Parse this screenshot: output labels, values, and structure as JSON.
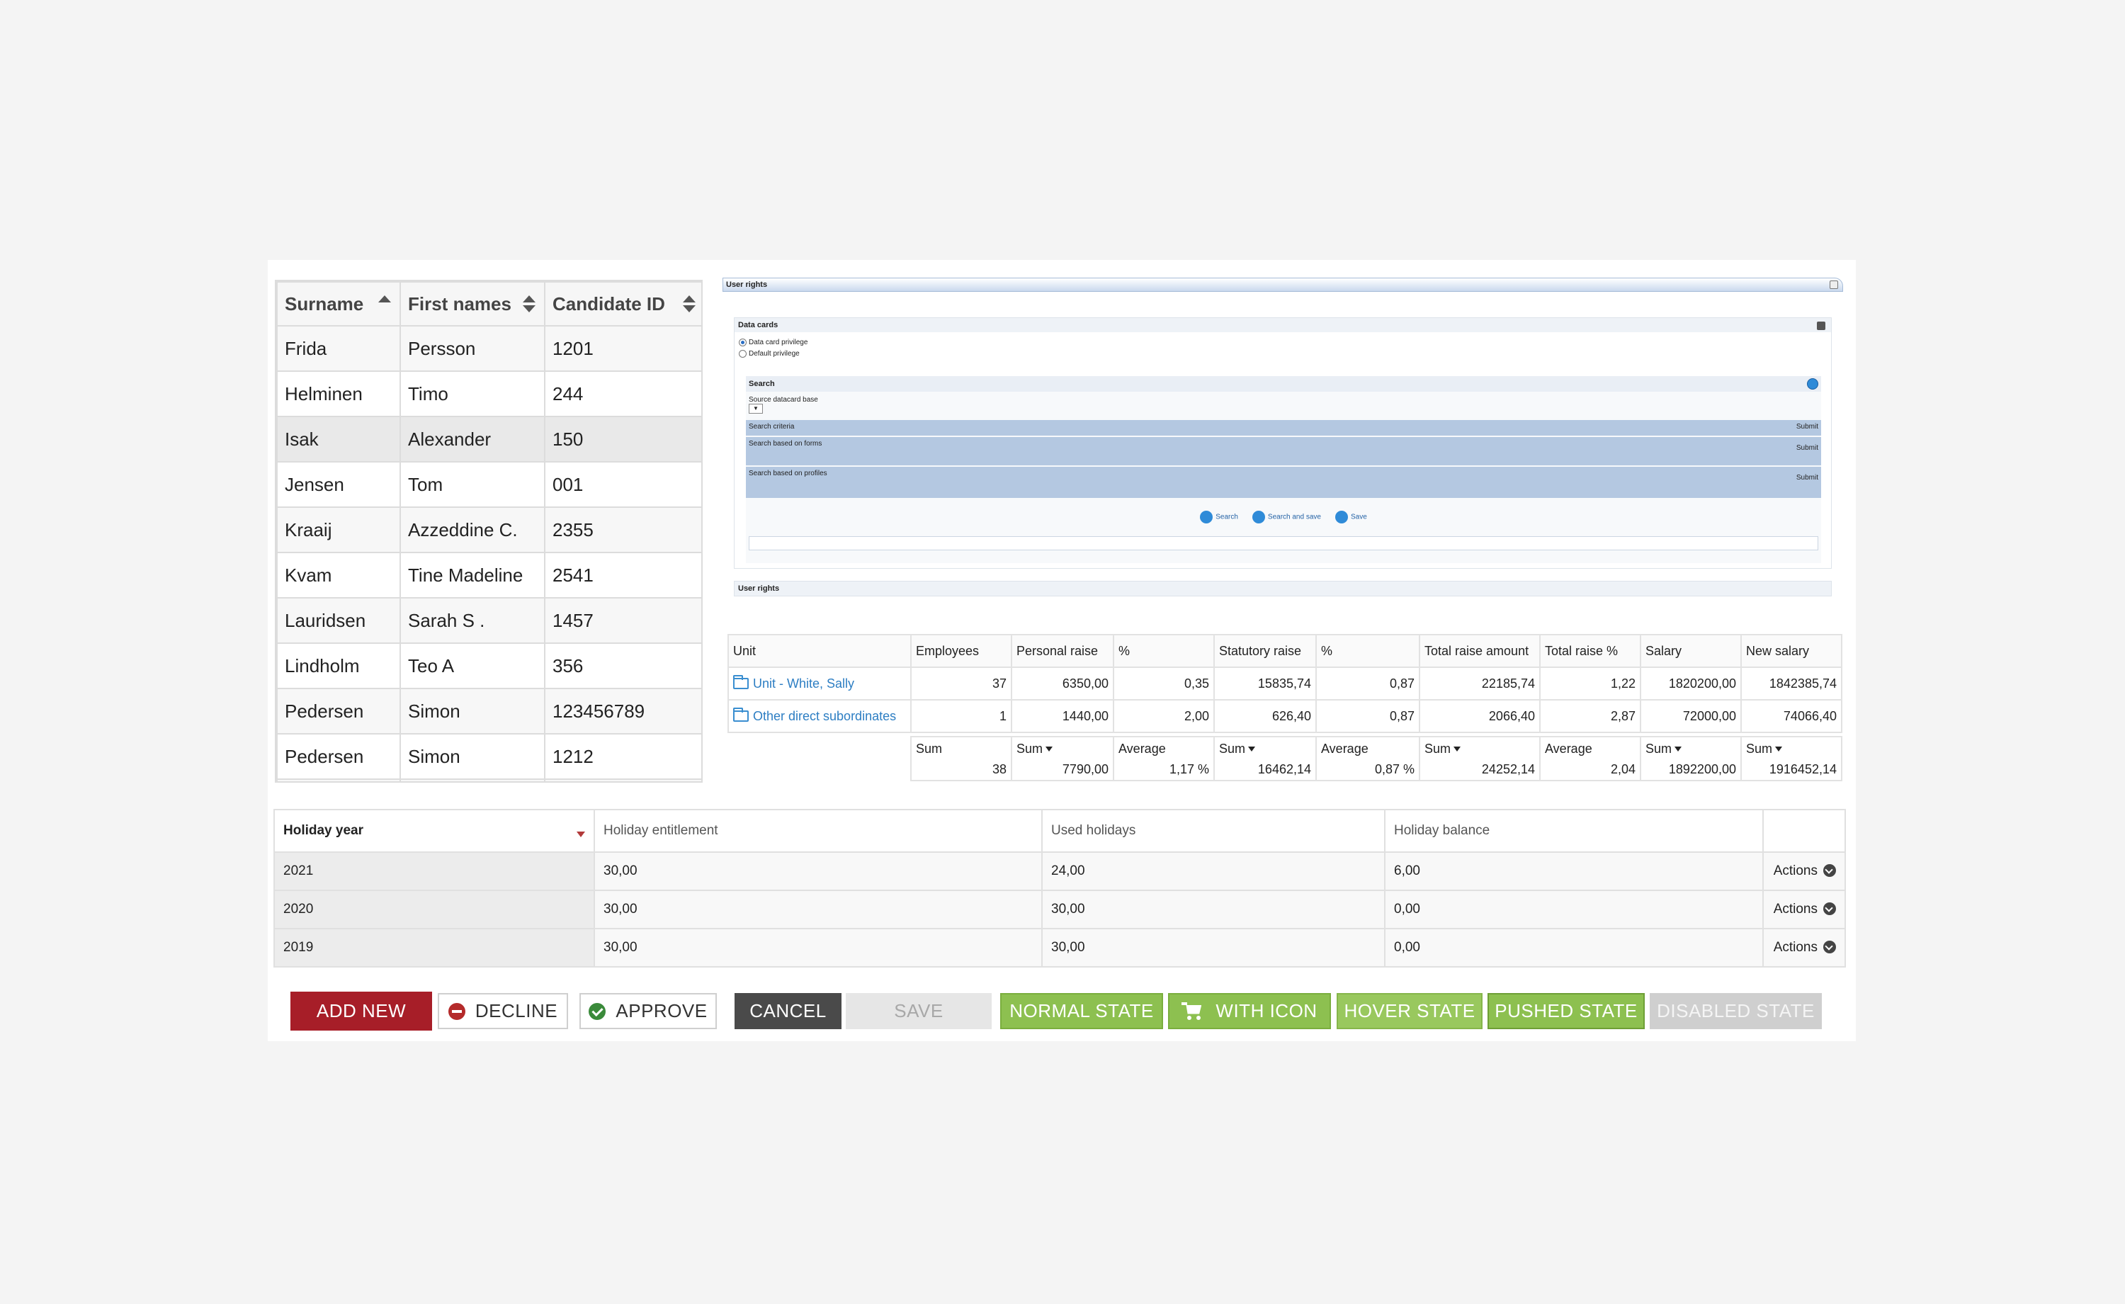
{
  "candidates": {
    "headers": {
      "surname": "Surname",
      "first_names": "First names",
      "candidate_id": "Candidate ID"
    },
    "rows": [
      {
        "surname": "Frida",
        "first": "Persson",
        "id": "1201"
      },
      {
        "surname": "Helminen",
        "first": "Timo",
        "id": "244"
      },
      {
        "surname": "Isak",
        "first": "Alexander",
        "id": "150"
      },
      {
        "surname": "Jensen",
        "first": "Tom",
        "id": "001"
      },
      {
        "surname": "Kraaij",
        "first": "Azzeddine C.",
        "id": "2355"
      },
      {
        "surname": "Kvam",
        "first": "Tine Madeline",
        "id": "2541"
      },
      {
        "surname": "Lauridsen",
        "first": "Sarah S .",
        "id": "1457"
      },
      {
        "surname": "Lindholm",
        "first": "Teo A",
        "id": "356"
      },
      {
        "surname": "Pedersen",
        "first": "Simon",
        "id": "123456789"
      },
      {
        "surname": "Pedersen",
        "first": "Simon",
        "id": "1212"
      }
    ]
  },
  "user_rights": {
    "title": "User rights",
    "data_cards": {
      "title": "Data cards",
      "radio_1": "Data card privilege",
      "radio_2": "Default privilege"
    },
    "search": {
      "title": "Search",
      "source_label": "Source datacard base",
      "criteria": "Search criteria",
      "forms": "Search based on forms",
      "profiles": "Search based on profiles",
      "submit": "Submit",
      "btn_search": "Search",
      "btn_search_save": "Search and save",
      "btn_save": "Save"
    },
    "footer": "User rights"
  },
  "raise": {
    "headers": [
      "Unit",
      "Employees",
      "Personal raise",
      "%",
      "Statutory raise",
      "%",
      "Total raise amount",
      "Total raise %",
      "Salary",
      "New salary"
    ],
    "rows": [
      {
        "unit": "Unit - White, Sally",
        "cells": [
          "37",
          "6350,00",
          "0,35",
          "15835,74",
          "0,87",
          "22185,74",
          "1,22",
          "1820200,00",
          "1842385,74"
        ]
      },
      {
        "unit": "Other direct subordinates",
        "cells": [
          "1",
          "1440,00",
          "2,00",
          "626,40",
          "0,87",
          "2066,40",
          "2,87",
          "72000,00",
          "74066,40"
        ]
      }
    ],
    "totals": {
      "labels": [
        "Sum",
        "Sum",
        "Average",
        "Sum",
        "Average",
        "Sum",
        "Average",
        "Sum",
        "Sum"
      ],
      "values": [
        "38",
        "7790,00",
        "1,17 %",
        "16462,14",
        "0,87 %",
        "24252,14",
        "2,04",
        "1892200,00",
        "1916452,14"
      ]
    }
  },
  "holiday": {
    "headers": {
      "year": "Holiday year",
      "entitlement": "Holiday entitlement",
      "used": "Used holidays",
      "balance": "Holiday balance"
    },
    "actions_label": "Actions",
    "rows": [
      {
        "year": "2021",
        "entitlement": "30,00",
        "used": "24,00",
        "balance": "6,00"
      },
      {
        "year": "2020",
        "entitlement": "30,00",
        "used": "30,00",
        "balance": "0,00"
      },
      {
        "year": "2019",
        "entitlement": "30,00",
        "used": "30,00",
        "balance": "0,00"
      }
    ]
  },
  "buttons": {
    "add_new": "ADD NEW",
    "decline": "DECLINE",
    "approve": "APPROVE",
    "cancel": "CANCEL",
    "save": "SAVE",
    "normal": "NORMAL STATE",
    "with_icon": "WITH ICON",
    "hover": "HOVER STATE",
    "pushed": "PUSHED STATE",
    "disabled": "DISABLED STATE"
  },
  "colors": {
    "primary_red": "#a71e28",
    "green": "#8dc050",
    "link_blue": "#2d7ec3"
  }
}
